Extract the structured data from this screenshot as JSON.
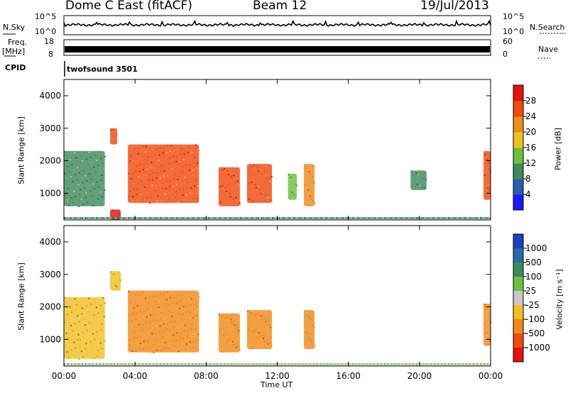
{
  "header": {
    "radar": "Dome C East (fitACF)",
    "beam": "Beam 12",
    "date": "19/Jul/2013"
  },
  "sky_panel": {
    "left_label": "N.Sky",
    "right_label": "N.Search",
    "left_ticks": [
      "10^5",
      "10^0"
    ],
    "right_ticks": [
      "10^5",
      "10^0"
    ]
  },
  "freq_panel": {
    "left_label_1": "Freq.",
    "left_label_2": "[MHz]",
    "right_label": "Nave",
    "left_ticks": [
      "18",
      "8"
    ],
    "right_ticks": [
      "60",
      "0"
    ]
  },
  "cpid_panel": {
    "label": "CPID",
    "value": "twofsound 3501"
  },
  "time_axis": {
    "ticks": [
      "00:00",
      "04:00",
      "08:00",
      "12:00",
      "16:00",
      "20:00",
      "00:00"
    ],
    "label": "Time UT"
  },
  "power_panel": {
    "ylabel": "Slant Range [km]",
    "yticks": [
      "1000",
      "2000",
      "3000",
      "4000"
    ],
    "cbar_label": "Power [dB]",
    "cbar_ticks": [
      "4",
      "8",
      "12",
      "16",
      "20",
      "24",
      "28"
    ],
    "cbar_colors": [
      "#1a1aff",
      "#2a5fb0",
      "#3e8a5a",
      "#6cc03a",
      "#f0c020",
      "#f08a1a",
      "#f04a10",
      "#e81010"
    ]
  },
  "velocity_panel": {
    "ylabel": "Slant Range [km]",
    "yticks": [
      "1000",
      "2000",
      "3000",
      "4000"
    ],
    "cbar_label": "Velocity [m s⁻¹]",
    "cbar_ticks": [
      "1000",
      "500",
      "100",
      "25",
      "-25",
      "-100",
      "-500",
      "-1000"
    ],
    "cbar_colors": [
      "#1a3fc0",
      "#2a6aa8",
      "#3a8a5a",
      "#6cc040",
      "#c8c8c8",
      "#f0c020",
      "#f08a1a",
      "#f04a10",
      "#e81010"
    ]
  },
  "chart_data": [
    {
      "type": "heatmap",
      "title": "Power",
      "xlabel": "Time UT",
      "ylabel": "Slant Range [km]",
      "xlim": [
        "00:00",
        "24:00"
      ],
      "ylim": [
        180,
        4500
      ],
      "zlabel": "Power [dB]",
      "zlim": [
        0,
        32
      ],
      "echo_regions": [
        {
          "t_start": 0.0,
          "t_end": 2.3,
          "r_min": 600,
          "r_max": 2300,
          "power_db": 10
        },
        {
          "t_start": 2.6,
          "t_end": 3.2,
          "r_min": 180,
          "r_max": 500,
          "power_db": 28
        },
        {
          "t_start": 2.6,
          "t_end": 3.0,
          "r_min": 2500,
          "r_max": 3000,
          "power_db": 26
        },
        {
          "t_start": 3.6,
          "t_end": 7.6,
          "r_min": 700,
          "r_max": 2500,
          "power_db": 24
        },
        {
          "t_start": 8.7,
          "t_end": 9.9,
          "r_min": 600,
          "r_max": 1800,
          "power_db": 26
        },
        {
          "t_start": 10.3,
          "t_end": 11.7,
          "r_min": 700,
          "r_max": 1900,
          "power_db": 24
        },
        {
          "t_start": 12.6,
          "t_end": 13.1,
          "r_min": 800,
          "r_max": 1600,
          "power_db": 14
        },
        {
          "t_start": 13.5,
          "t_end": 14.1,
          "r_min": 600,
          "r_max": 1900,
          "power_db": 20
        },
        {
          "t_start": 19.5,
          "t_end": 20.4,
          "r_min": 1100,
          "r_max": 1700,
          "power_db": 10
        },
        {
          "t_start": 23.6,
          "t_end": 24.0,
          "r_min": 800,
          "r_max": 2300,
          "power_db": 26
        }
      ]
    },
    {
      "type": "heatmap",
      "title": "Velocity",
      "xlabel": "Time UT",
      "ylabel": "Slant Range [km]",
      "xlim": [
        "00:00",
        "24:00"
      ],
      "ylim": [
        180,
        4500
      ],
      "zlabel": "Velocity [m s-1]",
      "zlim": [
        -1000,
        1000
      ],
      "echo_regions": [
        {
          "t_start": 0.0,
          "t_end": 2.3,
          "r_min": 400,
          "r_max": 2300,
          "velocity": -100
        },
        {
          "t_start": 2.6,
          "t_end": 3.2,
          "r_min": 2500,
          "r_max": 3100,
          "velocity": -100
        },
        {
          "t_start": 3.6,
          "t_end": 7.6,
          "r_min": 600,
          "r_max": 2500,
          "velocity": -300
        },
        {
          "t_start": 8.7,
          "t_end": 9.9,
          "r_min": 600,
          "r_max": 1800,
          "velocity": -300
        },
        {
          "t_start": 10.3,
          "t_end": 11.7,
          "r_min": 700,
          "r_max": 1900,
          "velocity": -300
        },
        {
          "t_start": 13.5,
          "t_end": 14.1,
          "r_min": 700,
          "r_max": 1900,
          "velocity": -200
        },
        {
          "t_start": 23.6,
          "t_end": 24.0,
          "r_min": 800,
          "r_max": 2100,
          "velocity": -300
        }
      ]
    }
  ]
}
